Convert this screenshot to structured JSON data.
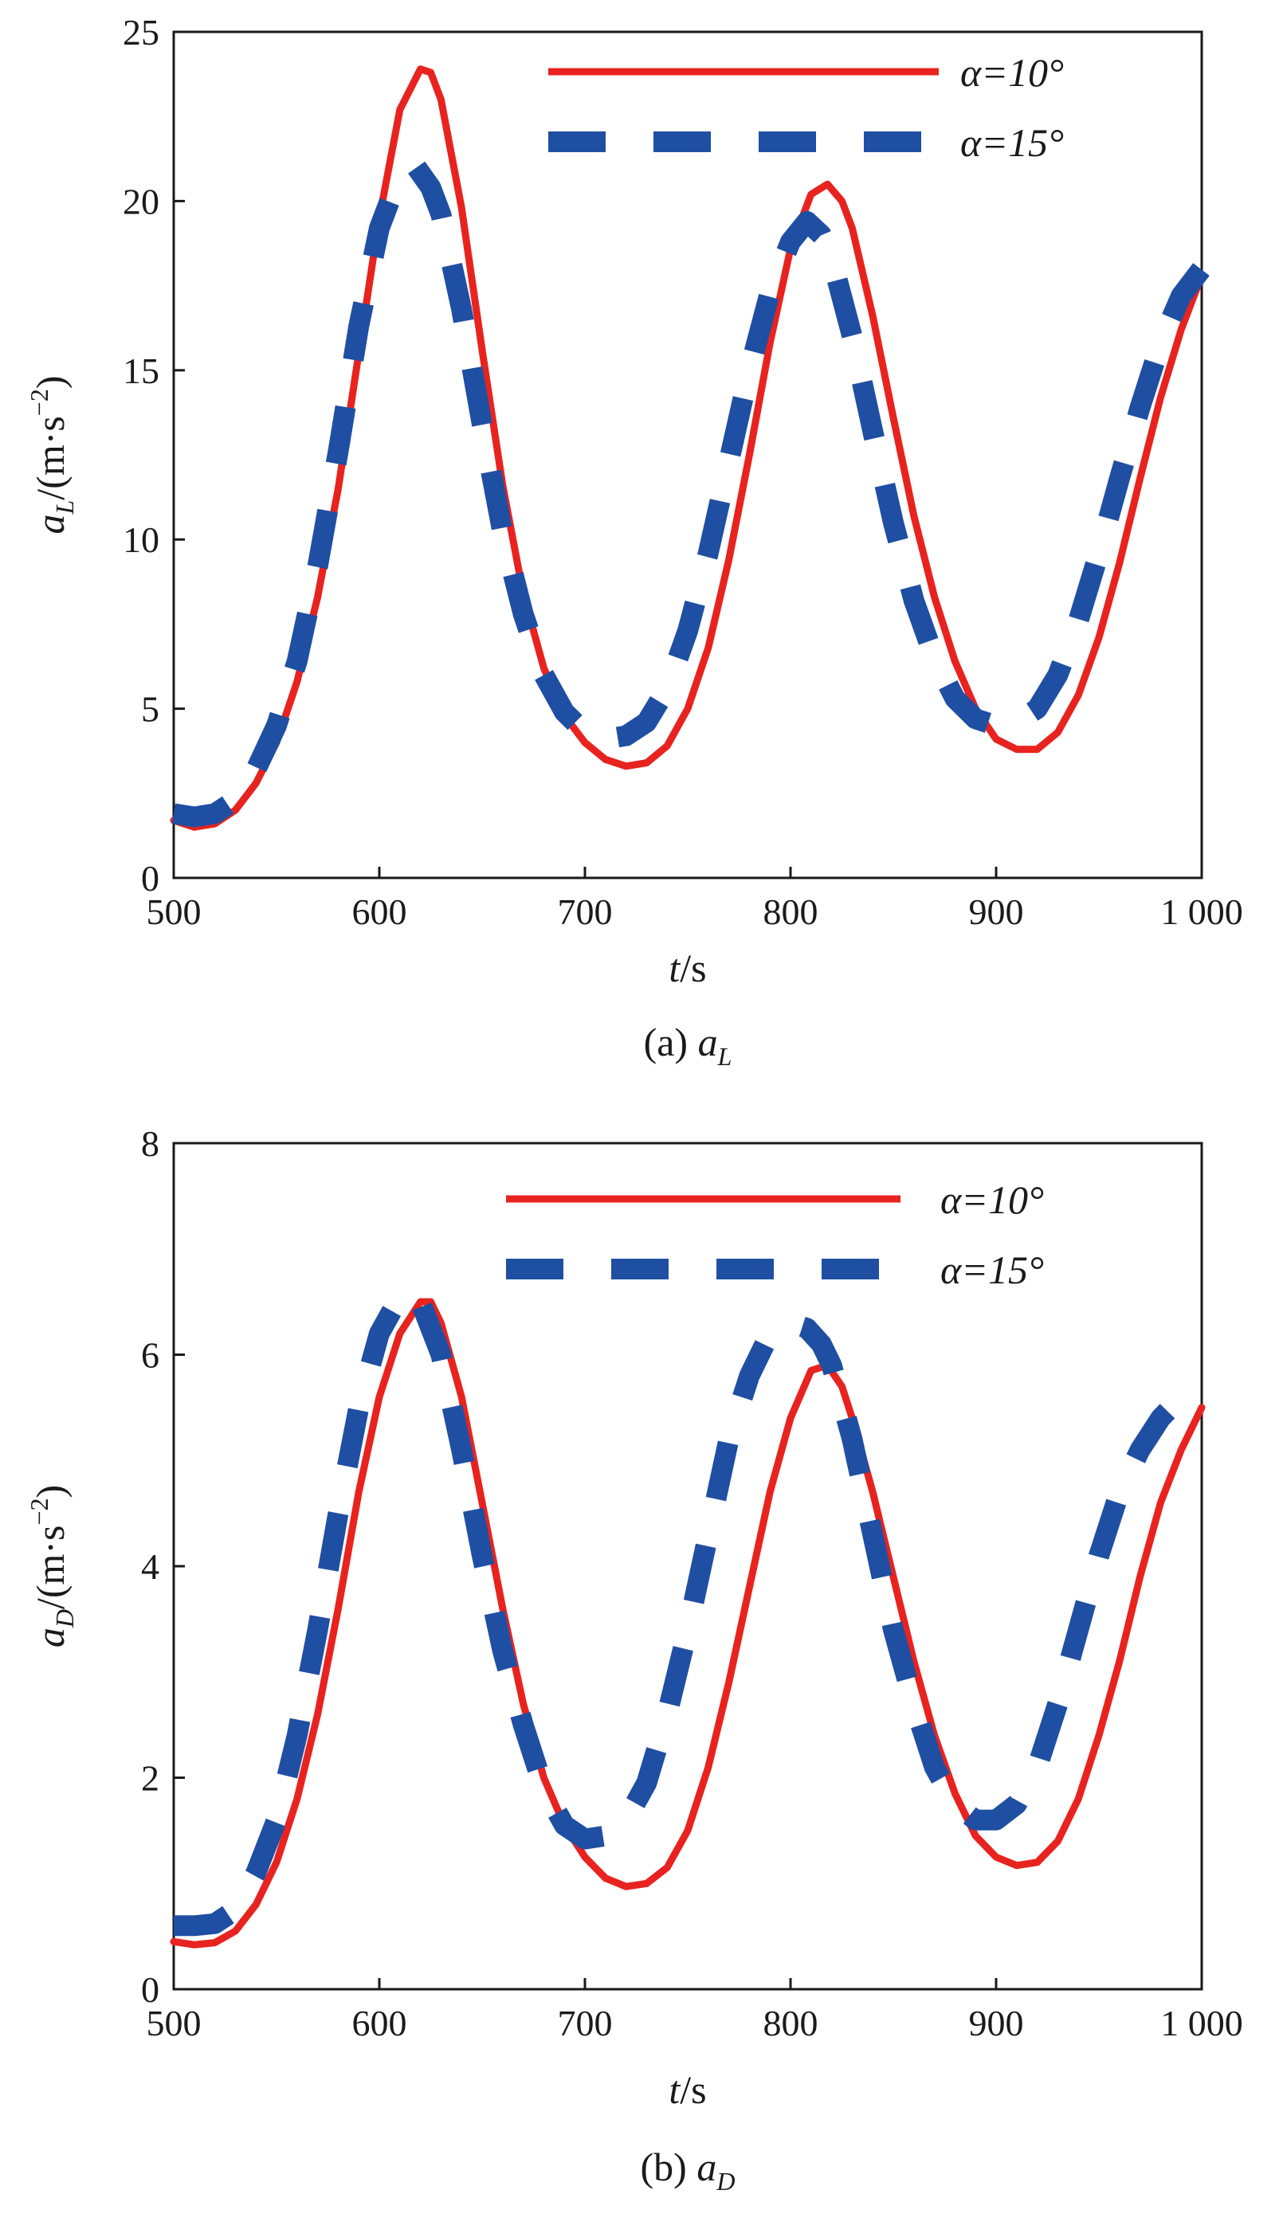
{
  "chart_data": [
    {
      "type": "line",
      "caption_prefix": "(a) ",
      "caption_var": "a",
      "caption_sub": "L",
      "xlabel_var": "t",
      "xlabel_unit": "/s",
      "ylabel_var": "a",
      "ylabel_sub": "L",
      "ylabel_unit": "/(m·s",
      "ylabel_exp": "−2",
      "ylabel_close": ")",
      "xlim": [
        500,
        1000
      ],
      "ylim": [
        0,
        25
      ],
      "xticks": [
        500,
        600,
        700,
        800,
        900,
        1000
      ],
      "xtick_labels": [
        "500",
        "600",
        "700",
        "800",
        "900",
        "1 000"
      ],
      "yticks": [
        0,
        5,
        10,
        15,
        20,
        25
      ],
      "ytick_labels": [
        "0",
        "5",
        "10",
        "15",
        "20",
        "25"
      ],
      "grid": false,
      "legend_position": "top-right",
      "series": [
        {
          "name": "α=10°",
          "color": "#e8231f",
          "style": "solid",
          "x": [
            500,
            510,
            520,
            530,
            540,
            550,
            560,
            570,
            580,
            590,
            600,
            610,
            620,
            625,
            630,
            640,
            650,
            660,
            670,
            680,
            690,
            700,
            710,
            720,
            730,
            740,
            750,
            760,
            770,
            780,
            790,
            800,
            810,
            818,
            825,
            830,
            840,
            850,
            860,
            870,
            880,
            890,
            900,
            910,
            920,
            930,
            940,
            950,
            960,
            970,
            980,
            990,
            1000
          ],
          "y": [
            1.7,
            1.5,
            1.6,
            2.0,
            2.8,
            4.0,
            5.8,
            8.3,
            11.5,
            15.5,
            19.5,
            22.7,
            23.9,
            23.8,
            23.0,
            19.8,
            15.6,
            11.6,
            8.4,
            6.2,
            4.8,
            4.0,
            3.5,
            3.3,
            3.4,
            3.9,
            5.0,
            6.8,
            9.4,
            12.5,
            15.8,
            18.6,
            20.2,
            20.5,
            20.0,
            19.2,
            16.6,
            13.6,
            10.7,
            8.3,
            6.4,
            5.0,
            4.1,
            3.8,
            3.8,
            4.3,
            5.4,
            7.1,
            9.3,
            11.8,
            14.2,
            16.2,
            17.8
          ]
        },
        {
          "name": "α=15°",
          "color": "#1f4fa3",
          "style": "dashed",
          "x": [
            500,
            510,
            520,
            530,
            540,
            550,
            560,
            570,
            580,
            590,
            600,
            610,
            618,
            625,
            630,
            640,
            650,
            660,
            670,
            680,
            690,
            700,
            710,
            720,
            730,
            740,
            750,
            760,
            770,
            780,
            790,
            800,
            808,
            815,
            820,
            830,
            840,
            850,
            860,
            870,
            880,
            890,
            900,
            910,
            920,
            930,
            940,
            950,
            960,
            970,
            980,
            990,
            1000
          ],
          "y": [
            1.9,
            1.8,
            1.9,
            2.3,
            3.2,
            4.5,
            6.4,
            9.2,
            12.6,
            16.3,
            19.2,
            20.8,
            21.0,
            20.4,
            19.6,
            16.8,
            13.4,
            10.2,
            7.8,
            6.0,
            4.9,
            4.3,
            4.1,
            4.2,
            4.6,
            5.6,
            7.3,
            9.6,
            12.3,
            15.0,
            17.3,
            18.8,
            19.4,
            19.0,
            18.3,
            16.0,
            13.2,
            10.5,
            8.2,
            6.5,
            5.3,
            4.7,
            4.5,
            4.6,
            5.0,
            6.0,
            7.6,
            9.6,
            11.8,
            13.9,
            15.8,
            17.2,
            18.0
          ]
        }
      ]
    },
    {
      "type": "line",
      "caption_prefix": "(b) ",
      "caption_var": "a",
      "caption_sub": "D",
      "xlabel_var": "t",
      "xlabel_unit": "/s",
      "ylabel_var": "a",
      "ylabel_sub": "D",
      "ylabel_unit": "/(m·s",
      "ylabel_exp": "−2",
      "ylabel_close": ")",
      "xlim": [
        500,
        1000
      ],
      "ylim": [
        0,
        8
      ],
      "xticks": [
        500,
        600,
        700,
        800,
        900,
        1000
      ],
      "xtick_labels": [
        "500",
        "600",
        "700",
        "800",
        "900",
        "1 000"
      ],
      "yticks": [
        0,
        2,
        4,
        6,
        8
      ],
      "ytick_labels": [
        "0",
        "2",
        "4",
        "6",
        "8"
      ],
      "grid": false,
      "legend_position": "top-right",
      "series": [
        {
          "name": "α=10°",
          "color": "#e8231f",
          "style": "solid",
          "x": [
            500,
            510,
            520,
            530,
            540,
            550,
            560,
            570,
            580,
            590,
            600,
            610,
            620,
            625,
            630,
            640,
            650,
            660,
            670,
            680,
            690,
            700,
            710,
            720,
            730,
            740,
            750,
            760,
            770,
            780,
            790,
            800,
            810,
            818,
            825,
            830,
            840,
            850,
            860,
            870,
            880,
            890,
            900,
            910,
            920,
            930,
            940,
            950,
            960,
            970,
            980,
            990,
            1000
          ],
          "y": [
            0.45,
            0.42,
            0.44,
            0.55,
            0.8,
            1.2,
            1.8,
            2.6,
            3.6,
            4.7,
            5.6,
            6.2,
            6.5,
            6.5,
            6.3,
            5.6,
            4.6,
            3.6,
            2.7,
            2.0,
            1.55,
            1.25,
            1.05,
            0.97,
            1.0,
            1.15,
            1.5,
            2.1,
            2.9,
            3.8,
            4.7,
            5.4,
            5.85,
            5.9,
            5.7,
            5.4,
            4.7,
            3.9,
            3.1,
            2.4,
            1.85,
            1.45,
            1.25,
            1.17,
            1.2,
            1.4,
            1.8,
            2.4,
            3.1,
            3.9,
            4.6,
            5.1,
            5.5
          ]
        },
        {
          "name": "α=15°",
          "color": "#1f4fa3",
          "style": "dashed",
          "x": [
            500,
            510,
            520,
            530,
            540,
            550,
            560,
            570,
            580,
            590,
            600,
            610,
            615,
            620,
            630,
            640,
            650,
            660,
            670,
            680,
            690,
            700,
            710,
            720,
            730,
            740,
            750,
            760,
            770,
            780,
            790,
            800,
            808,
            815,
            820,
            830,
            840,
            850,
            860,
            870,
            880,
            890,
            900,
            910,
            920,
            930,
            940,
            950,
            960,
            970,
            980,
            990,
            1000
          ],
          "y": [
            0.6,
            0.6,
            0.62,
            0.75,
            1.1,
            1.6,
            2.4,
            3.4,
            4.5,
            5.5,
            6.2,
            6.55,
            6.6,
            6.5,
            6.0,
            5.1,
            4.1,
            3.2,
            2.5,
            1.9,
            1.55,
            1.42,
            1.45,
            1.6,
            1.95,
            2.6,
            3.4,
            4.3,
            5.2,
            5.8,
            6.2,
            6.3,
            6.25,
            6.1,
            5.9,
            5.2,
            4.3,
            3.4,
            2.7,
            2.1,
            1.75,
            1.6,
            1.6,
            1.75,
            2.1,
            2.7,
            3.4,
            4.1,
            4.7,
            5.1,
            5.4,
            5.6,
            5.7
          ]
        }
      ]
    }
  ]
}
